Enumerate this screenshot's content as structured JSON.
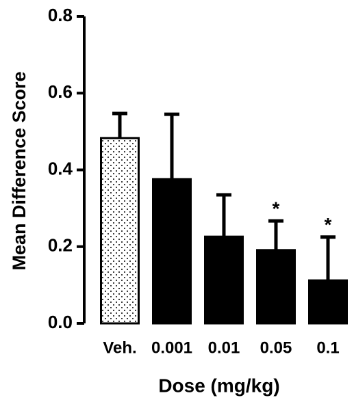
{
  "chart_data": {
    "type": "bar",
    "y_label": "Mean Difference Score",
    "x_label": "Dose (mg/kg)",
    "categories": [
      "Veh.",
      "0.001",
      "0.01",
      "0.05",
      "0.1"
    ],
    "values": [
      0.483,
      0.376,
      0.226,
      0.191,
      0.112
    ],
    "errors": [
      0.064,
      0.169,
      0.109,
      0.076,
      0.113
    ],
    "fills": [
      "dots",
      "#000000",
      "#000000",
      "#000000",
      "#000000"
    ],
    "annotations": [
      {
        "text": "*",
        "category": "0.05"
      },
      {
        "text": "*",
        "category": "0.1"
      }
    ],
    "ylim": [
      0,
      0.8
    ],
    "yticks": [
      {
        "value": 0,
        "label": "0.0"
      },
      0.2,
      0.4,
      0.6,
      0.8
    ]
  }
}
